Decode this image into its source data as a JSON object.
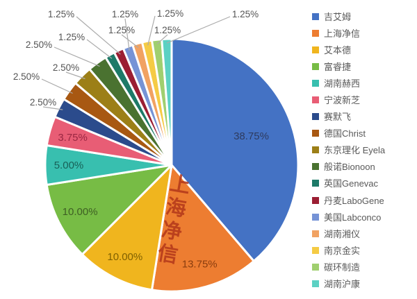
{
  "watermark": {
    "text": "上海净信",
    "color": "#B2361A"
  },
  "chart_data": {
    "type": "pie",
    "title": "",
    "legend_position": "right",
    "direction": "clockwise",
    "start_angle_deg": 0,
    "label_unit": "%",
    "outside_label_color": "#545454",
    "leader_line_color": "#ABABAB",
    "series": [
      {
        "label": "吉艾姆",
        "value": 38.75,
        "display": "38.75%",
        "color": "#4472C4",
        "label_color": "#2E3B5F"
      },
      {
        "label": "上海净信",
        "value": 13.75,
        "display": "13.75%",
        "color": "#ED7D31",
        "label_color": "#8A3D0F"
      },
      {
        "label": "艾本德",
        "value": 10.0,
        "display": "10.00%",
        "color": "#F0B51E",
        "label_color": "#7F6000"
      },
      {
        "label": "富睿捷",
        "value": 10.0,
        "display": "10.00%",
        "color": "#77BC45",
        "label_color": "#3E5F24"
      },
      {
        "label": "湖南赫西",
        "value": 5.0,
        "display": "5.00%",
        "color": "#38BFAF",
        "label_color": "#186158"
      },
      {
        "label": "宁波新芝",
        "value": 3.75,
        "display": "3.75%",
        "color": "#E85D75",
        "label_color": "#9A2742"
      },
      {
        "label": "赛默飞",
        "value": 2.5,
        "display": "2.50%",
        "color": "#2B4B8C"
      },
      {
        "label": "德国Christ",
        "value": 2.5,
        "display": "2.50%",
        "color": "#A85812"
      },
      {
        "label": "东京理化 Eyela",
        "value": 2.5,
        "display": "2.50%",
        "color": "#9C7F17"
      },
      {
        "label": "般诺Bionoon",
        "value": 2.5,
        "display": "2.50%",
        "color": "#4A7230"
      },
      {
        "label": "英国Genevac",
        "value": 1.25,
        "display": "1.25%",
        "color": "#1D7A68"
      },
      {
        "label": "丹麦LaboGene",
        "value": 1.25,
        "display": "1.25%",
        "color": "#9B1E33"
      },
      {
        "label": "美国Labconco",
        "value": 1.25,
        "display": "1.25%",
        "color": "#7693D6"
      },
      {
        "label": "湖南湘仪",
        "value": 1.25,
        "display": "1.25%",
        "color": "#F1A262"
      },
      {
        "label": "南京金实",
        "value": 1.25,
        "display": "1.25%",
        "color": "#F5CB44"
      },
      {
        "label": "碳环制造",
        "value": 1.25,
        "display": "1.25%",
        "color": "#A0CF6F"
      },
      {
        "label": "湖南沪康",
        "value": 1.25,
        "display": "1.25%",
        "color": "#5CD1C3"
      }
    ]
  }
}
